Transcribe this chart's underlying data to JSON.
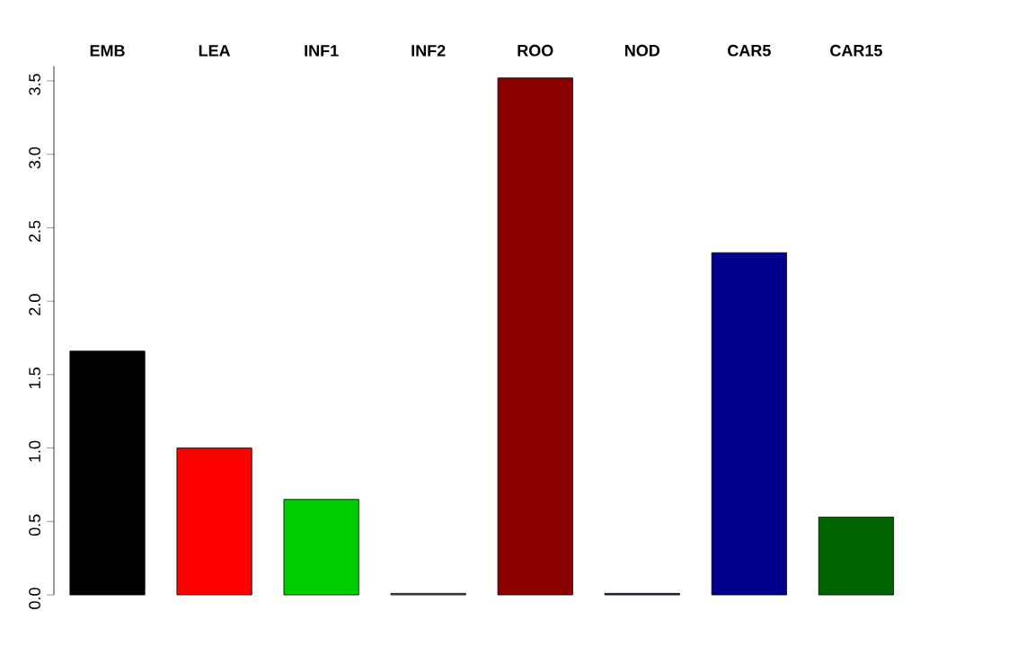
{
  "chart_data": {
    "type": "bar",
    "categories": [
      "EMB",
      "LEA",
      "INF1",
      "INF2",
      "ROO",
      "NOD",
      "CAR5",
      "CAR15"
    ],
    "values": [
      1.66,
      1.0,
      0.65,
      0.01,
      3.52,
      0.01,
      2.33,
      0.53
    ],
    "colors": [
      "#000000",
      "#ff0000",
      "#00cd00",
      "#666666",
      "#8b0000",
      "#551a8b",
      "#00008b",
      "#006400"
    ],
    "ylim": [
      0,
      3.6
    ],
    "yticks": [
      {
        "value": 0,
        "label": "0.0"
      },
      {
        "value": 0.5,
        "label": "0.5"
      },
      {
        "value": 1,
        "label": "1.0"
      },
      {
        "value": 1.5,
        "label": "1.5"
      },
      {
        "value": 2,
        "label": "2.0"
      },
      {
        "value": 2.5,
        "label": "2.5"
      },
      {
        "value": 3,
        "label": "3.0"
      },
      {
        "value": 3.5,
        "label": "3.5"
      }
    ],
    "grid": false
  }
}
